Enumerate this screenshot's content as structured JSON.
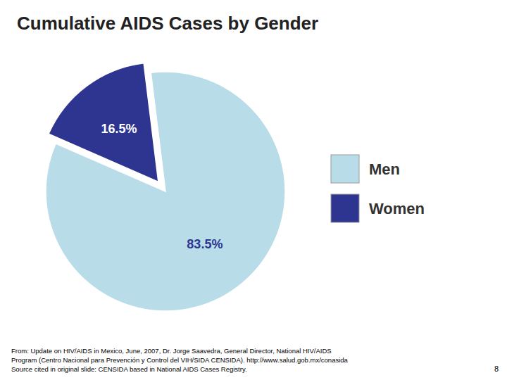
{
  "chart_data": {
    "type": "pie",
    "title": "Cumulative AIDS Cases by Gender",
    "categories": [
      "Men",
      "Women"
    ],
    "values": [
      83.5,
      16.5
    ],
    "value_labels": [
      "83.5%",
      "16.5%"
    ],
    "colors": [
      "#b8dde8",
      "#2e3590"
    ],
    "data_labels": true,
    "legend": "right",
    "annotations": [
      "From: Update on HIV/AIDS in Mexico, June, 2007, Dr. Jorge Saavedra, General Director, National HIV/AIDS\nProgram (Centro Nacional para Prevención y Control del VIH/SIDA CENSIDA).  http://www.salud.gob.mx/conasida\nSource cited in original slide: CENSIDA based in National AIDS Cases Registry.",
      "8"
    ]
  }
}
